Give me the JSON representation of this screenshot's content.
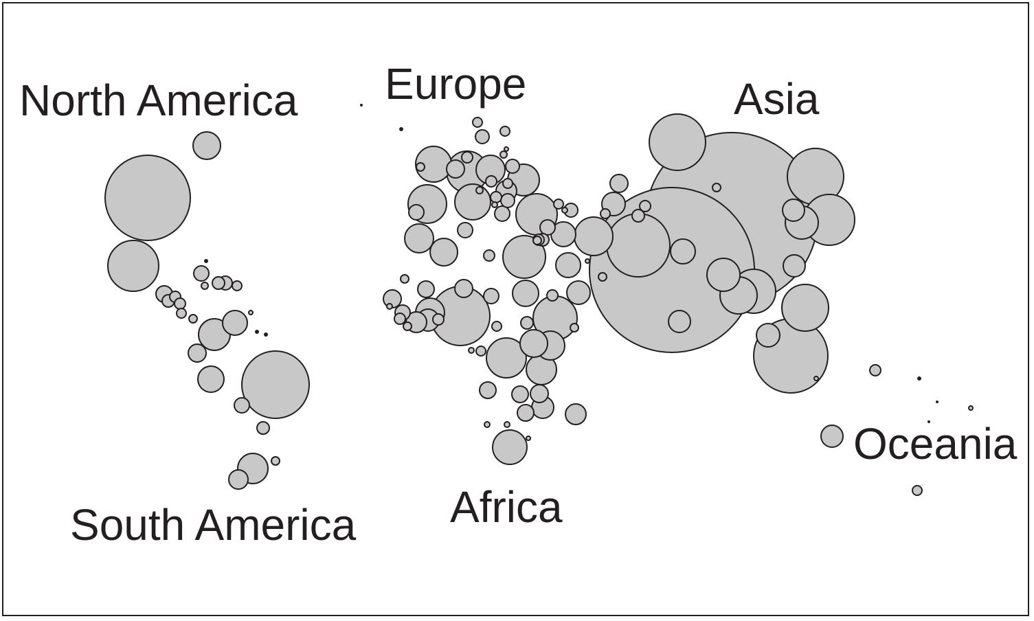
{
  "colors": {
    "bubble_fill": "#c8c8c8",
    "bubble_stroke": "#231f20",
    "text": "#231f20",
    "background": "#ffffff"
  },
  "regions": [
    {
      "id": "north-america",
      "label": "North America"
    },
    {
      "id": "europe",
      "label": "Europe"
    },
    {
      "id": "asia",
      "label": "Asia"
    },
    {
      "id": "south-america",
      "label": "South America"
    },
    {
      "id": "africa",
      "label": "Africa"
    },
    {
      "id": "oceania",
      "label": "Oceania"
    }
  ]
}
